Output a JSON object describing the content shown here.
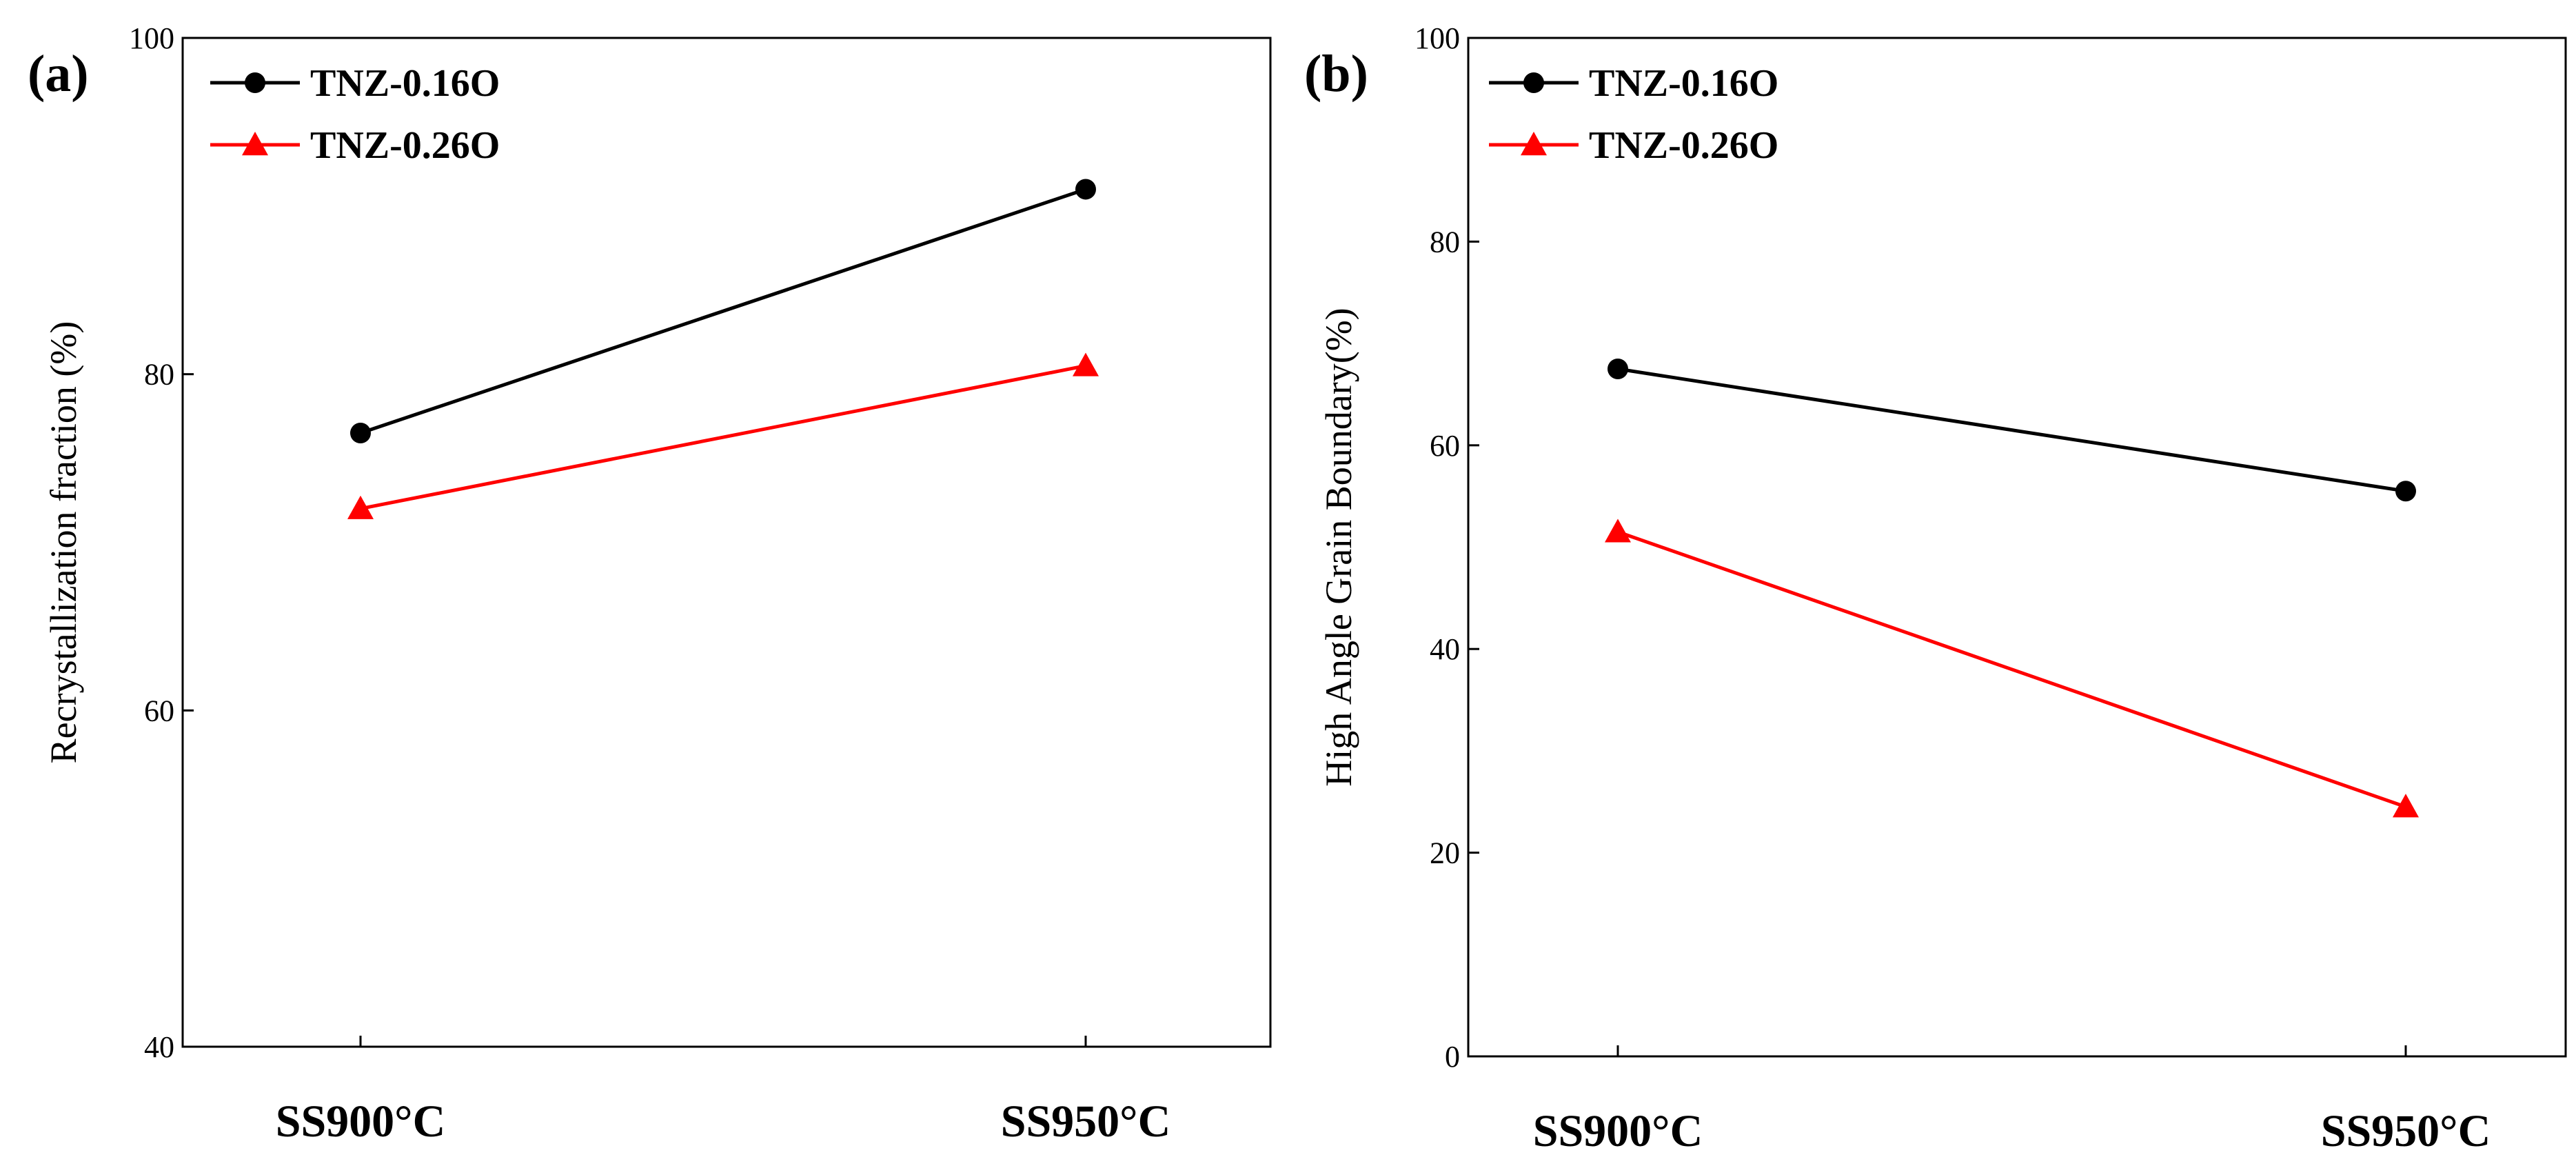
{
  "chart_data": [
    {
      "type": "line",
      "panel_label": "(a)",
      "categories": [
        "SS900°C",
        "SS950°C"
      ],
      "series": [
        {
          "name": "TNZ-0.16O",
          "color": "#000000",
          "marker": "circle",
          "values": [
            76.5,
            91
          ]
        },
        {
          "name": "TNZ-0.26O",
          "color": "#ff0000",
          "marker": "triangle",
          "values": [
            72,
            80.5
          ]
        }
      ],
      "title": "",
      "xlabel": "",
      "ylabel": "Recrystallization fraction (%)",
      "ylim": [
        40,
        100
      ],
      "yticks": [
        40,
        60,
        80,
        100
      ],
      "grid": false,
      "legend_position": "top-left"
    },
    {
      "type": "line",
      "panel_label": "(b)",
      "categories": [
        "SS900°C",
        "SS950°C"
      ],
      "series": [
        {
          "name": "TNZ-0.16O",
          "color": "#000000",
          "marker": "circle",
          "values": [
            67.5,
            55.5
          ]
        },
        {
          "name": "TNZ-0.26O",
          "color": "#ff0000",
          "marker": "triangle",
          "values": [
            51.5,
            24.5
          ]
        }
      ],
      "title": "",
      "xlabel": "",
      "ylabel": "High Angle Grain Boundary(%)",
      "ylim": [
        0,
        100
      ],
      "yticks": [
        0,
        20,
        40,
        60,
        80,
        100
      ],
      "grid": false,
      "legend_position": "top-left"
    }
  ]
}
